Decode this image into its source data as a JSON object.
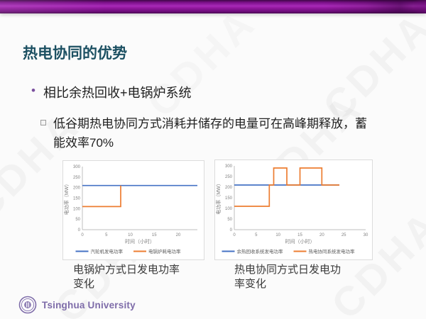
{
  "slide": {
    "title": "热电协同的优势",
    "bullet_marker": "•",
    "bullet": "相比余热回收+电锅炉系统",
    "sub_bullet": "低谷期热电协同方式消耗并储存的电量可在高峰期释放，蓄能效率70%",
    "watermark": "CDHA",
    "footer_org": "Tsinghua University",
    "colors": {
      "accent_bar_purple": "#8B169C",
      "title_teal": "#1C5062",
      "series_blue": "#4472C4",
      "series_orange": "#ED7D31",
      "footer_purple": "#7E6CA9"
    }
  },
  "chart_data": [
    {
      "type": "line",
      "caption": "电锅炉方式日发电功率变化",
      "xlabel": "时间（小时）",
      "ylabel": "电功率（MW）",
      "xlim": [
        0,
        24
      ],
      "ylim": [
        0,
        300
      ],
      "xticks": [
        0,
        5,
        10,
        15,
        20
      ],
      "yticks": [
        0,
        50,
        100,
        150,
        200,
        250,
        300
      ],
      "grid": false,
      "legend_position": "bottom",
      "series": [
        {
          "name": "汽轮机发电功率",
          "color": "#4472C4",
          "points": [
            [
              0,
              210
            ],
            [
              24,
              210
            ]
          ]
        },
        {
          "name": "电锅炉耗电功率",
          "color": "#ED7D31",
          "points": [
            [
              0,
              110
            ],
            [
              8,
              110
            ],
            [
              8,
              210
            ]
          ]
        }
      ]
    },
    {
      "type": "line",
      "caption": "热电协同方式日发电功率变化",
      "xlabel": "时间（小时）",
      "ylabel": "电功率（MW）",
      "xlim": [
        0,
        30
      ],
      "ylim": [
        0,
        300
      ],
      "xticks": [
        0,
        5,
        10,
        15,
        20,
        25,
        30
      ],
      "yticks": [
        0,
        50,
        100,
        150,
        200,
        250,
        300
      ],
      "grid": false,
      "legend_position": "bottom",
      "series": [
        {
          "name": "余热回收系统发电功率",
          "color": "#4472C4",
          "points": [
            [
              0,
              210
            ],
            [
              24,
              210
            ]
          ]
        },
        {
          "name": "热电协同系统发电功率",
          "color": "#ED7D31",
          "points": [
            [
              0,
              110
            ],
            [
              8,
              110
            ],
            [
              8,
              210
            ],
            [
              9,
              210
            ],
            [
              9,
              290
            ],
            [
              12,
              290
            ],
            [
              12,
              210
            ],
            [
              15,
              210
            ],
            [
              15,
              290
            ],
            [
              20,
              290
            ],
            [
              20,
              210
            ],
            [
              24,
              210
            ]
          ]
        }
      ]
    }
  ]
}
